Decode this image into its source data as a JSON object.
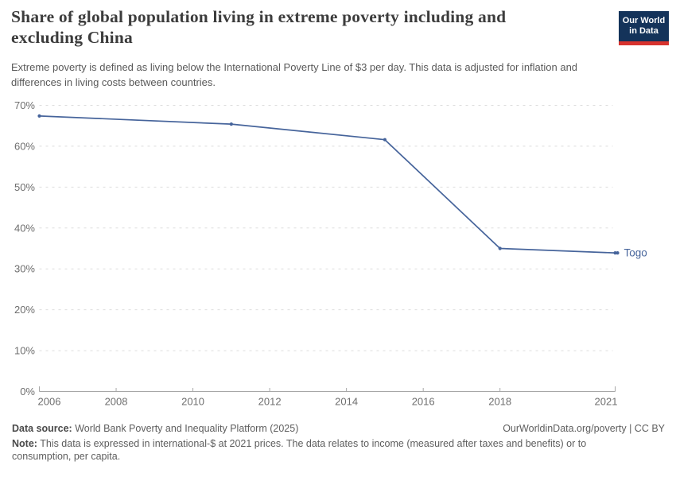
{
  "header": {
    "title": "Share of global population living in extreme poverty including and excluding China",
    "subtitle": "Extreme poverty is defined as living below the International Poverty Line of $3 per day. This data is adjusted for inflation and differences in living costs between countries.",
    "logo": {
      "line1": "Our World",
      "line2": "in Data",
      "bg_color": "#14335a",
      "accent_color": "#d7332e"
    }
  },
  "chart_data": {
    "type": "line",
    "title": "Share of global population living in extreme poverty including and excluding China",
    "series": [
      {
        "name": "Togo",
        "x": [
          2006,
          2011,
          2015,
          2018,
          2021
        ],
        "values": [
          67.4,
          65.4,
          61.6,
          35.0,
          33.9
        ],
        "color": "#46649b"
      }
    ],
    "entity_label": "Togo",
    "xticks": [
      2006,
      2008,
      2010,
      2012,
      2014,
      2016,
      2018,
      2021
    ],
    "yticks": [
      0,
      10,
      20,
      30,
      40,
      50,
      60,
      70
    ],
    "ytick_suffix": "%",
    "xlim": [
      2006,
      2021
    ],
    "ylim": [
      0,
      70
    ],
    "xlabel": "",
    "ylabel": "",
    "grid": "horizontal-dashed",
    "legend_position": "end-of-line-label",
    "colors": {
      "line": "#46649b",
      "grid": "#dddddd",
      "axis": "#a7a7a7",
      "tick_label": "#6e6e6e"
    }
  },
  "footer": {
    "data_source_label": "Data source:",
    "data_source_text": " World Bank Poverty and Inequality Platform (2025)",
    "link_text": "OurWorldinData.org/poverty | CC BY",
    "note_label": "Note:",
    "note_text": " This data is expressed in international-$ at 2021 prices. The data relates to income (measured after taxes and benefits) or to consumption, per capita."
  }
}
